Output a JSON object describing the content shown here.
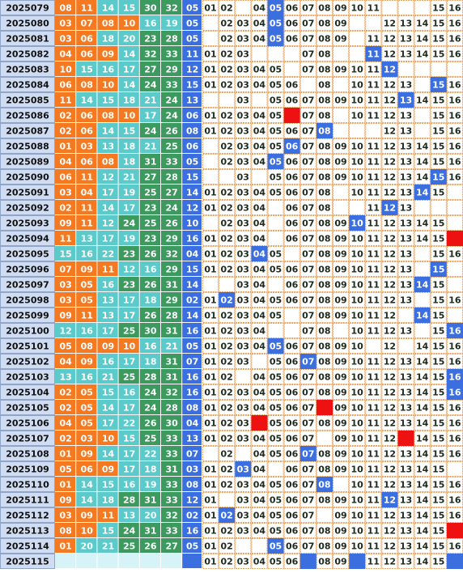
{
  "colors": {
    "zone1": "#f47920",
    "zone2": "#5ccaca",
    "zone3": "#3d9a5f",
    "blue": "#3b6fe0",
    "red": "#ee1111",
    "empty": "#d6f3f7"
  },
  "rows": [
    {
      "issue": "2025079",
      "reds": [
        "08",
        "11",
        "14",
        "15",
        "30",
        "32"
      ],
      "blue": "05",
      "hit": [
        5
      ],
      "dist": [
        "01",
        "02",
        null,
        "04",
        "05",
        "06",
        "07",
        "08",
        "09",
        "10",
        "11",
        null,
        null,
        null,
        "15",
        "16"
      ]
    },
    {
      "issue": "2025080",
      "reds": [
        "03",
        "07",
        "08",
        "10",
        "16",
        "19"
      ],
      "blue": "05",
      "hit": [
        5
      ],
      "dist": [
        null,
        "02",
        "03",
        "04",
        "05",
        "06",
        "07",
        "08",
        "09",
        null,
        null,
        "12",
        "13",
        "14",
        "15",
        "16"
      ]
    },
    {
      "issue": "2025081",
      "reds": [
        "03",
        "06",
        "18",
        "20",
        "23",
        "28"
      ],
      "blue": "05",
      "hit": [
        5
      ],
      "dist": [
        null,
        "02",
        "03",
        "04",
        "05",
        "06",
        "07",
        "08",
        "09",
        null,
        "11",
        "12",
        "13",
        "14",
        "15",
        "16"
      ]
    },
    {
      "issue": "2025082",
      "reds": [
        "04",
        "06",
        "09",
        "14",
        "32",
        "33"
      ],
      "blue": "11",
      "hit": [
        11
      ],
      "dist": [
        "01",
        "02",
        "03",
        null,
        null,
        null,
        "07",
        "08",
        null,
        null,
        "11",
        "12",
        "13",
        "14",
        "15",
        "16"
      ]
    },
    {
      "issue": "2025083",
      "reds": [
        "10",
        "15",
        "16",
        "17",
        "27",
        "29"
      ],
      "blue": "12",
      "hit": [
        12
      ],
      "dist": [
        "01",
        "02",
        "03",
        "04",
        "05",
        null,
        "07",
        "08",
        "09",
        "10",
        "11",
        "12",
        null,
        null,
        null,
        null
      ]
    },
    {
      "issue": "2025084",
      "reds": [
        "06",
        "08",
        "10",
        "14",
        "24",
        "33"
      ],
      "blue": "15",
      "hit": [
        15
      ],
      "dist": [
        "01",
        "02",
        "03",
        "04",
        "05",
        "06",
        null,
        "08",
        null,
        "10",
        "11",
        "12",
        "13",
        null,
        "15",
        "16"
      ]
    },
    {
      "issue": "2025085",
      "reds": [
        "11",
        "14",
        "15",
        "18",
        "21",
        "24"
      ],
      "blue": "13",
      "hit": [
        13
      ],
      "dist": [
        null,
        null,
        "03",
        null,
        "05",
        "06",
        "07",
        "08",
        "09",
        "10",
        "11",
        "12",
        "13",
        "14",
        "15",
        "16"
      ]
    },
    {
      "issue": "2025086",
      "reds": [
        "02",
        "06",
        "08",
        "10",
        "17",
        "24"
      ],
      "blue": "06",
      "hit": [
        6
      ],
      "hit_color": "red",
      "dist": [
        "01",
        "02",
        "03",
        "04",
        "05",
        null,
        "07",
        "08",
        null,
        "10",
        "11",
        "12",
        "13",
        null,
        "15",
        "16"
      ]
    },
    {
      "issue": "2025087",
      "reds": [
        "02",
        "06",
        "14",
        "15",
        "24",
        "26"
      ],
      "blue": "08",
      "hit": [
        8
      ],
      "dist": [
        "01",
        "02",
        "03",
        "04",
        "05",
        "06",
        "07",
        "08",
        null,
        null,
        null,
        "12",
        "13",
        null,
        "15",
        "16"
      ]
    },
    {
      "issue": "2025088",
      "reds": [
        "01",
        "03",
        "13",
        "18",
        "21",
        "25"
      ],
      "blue": "06",
      "hit": [
        6
      ],
      "dist": [
        null,
        "02",
        "03",
        "04",
        "05",
        "06",
        "07",
        "08",
        "09",
        "10",
        "11",
        "12",
        "13",
        "14",
        "15",
        "16"
      ]
    },
    {
      "issue": "2025089",
      "reds": [
        "04",
        "06",
        "08",
        "18",
        "31",
        "33"
      ],
      "blue": "05",
      "hit": [
        5
      ],
      "dist": [
        null,
        "02",
        "03",
        "04",
        "05",
        "06",
        "07",
        "08",
        "09",
        "10",
        "11",
        "12",
        "13",
        "14",
        "15",
        "16"
      ]
    },
    {
      "issue": "2025090",
      "reds": [
        "06",
        "11",
        "12",
        "21",
        "27",
        "28"
      ],
      "blue": "15",
      "hit": [
        15
      ],
      "dist": [
        null,
        null,
        "03",
        null,
        "05",
        "06",
        "07",
        "08",
        "09",
        "10",
        "11",
        "12",
        "13",
        "14",
        "15",
        "16"
      ]
    },
    {
      "issue": "2025091",
      "reds": [
        "03",
        "04",
        "17",
        "19",
        "25",
        "27"
      ],
      "blue": "14",
      "hit": [
        14
      ],
      "dist": [
        "01",
        "02",
        "03",
        "04",
        "05",
        "06",
        "07",
        "08",
        null,
        "10",
        "11",
        "12",
        "13",
        "14",
        "15",
        null
      ]
    },
    {
      "issue": "2025092",
      "reds": [
        "02",
        "11",
        "14",
        "17",
        "23",
        "24"
      ],
      "blue": "12",
      "hit": [
        12
      ],
      "dist": [
        "01",
        "02",
        "03",
        "04",
        null,
        "06",
        "07",
        "08",
        null,
        null,
        "11",
        "12",
        "13",
        null,
        null,
        null
      ]
    },
    {
      "issue": "2025093",
      "reds": [
        "09",
        "11",
        "12",
        "24",
        "25",
        "26"
      ],
      "blue": "10",
      "hit": [
        10
      ],
      "dist": [
        null,
        "02",
        "03",
        "04",
        null,
        "06",
        "07",
        "08",
        "09",
        "10",
        "11",
        "12",
        "13",
        "14",
        "15",
        null
      ]
    },
    {
      "issue": "2025094",
      "reds": [
        "11",
        "13",
        "17",
        "19",
        "23",
        "29"
      ],
      "blue": "16",
      "hit": [
        16
      ],
      "hit_color": "red",
      "dist": [
        "01",
        "02",
        "03",
        "04",
        null,
        "06",
        "07",
        "08",
        "09",
        "10",
        "11",
        "12",
        "13",
        "14",
        "15",
        null
      ]
    },
    {
      "issue": "2025095",
      "reds": [
        "15",
        "16",
        "22",
        "23",
        "26",
        "32"
      ],
      "blue": "04",
      "hit": [
        4
      ],
      "dist": [
        "01",
        "02",
        "03",
        "04",
        "05",
        null,
        "07",
        "08",
        "09",
        "10",
        "11",
        "12",
        "13",
        null,
        "15",
        "16"
      ]
    },
    {
      "issue": "2025096",
      "reds": [
        "07",
        "09",
        "11",
        "12",
        "16",
        "29"
      ],
      "blue": "15",
      "hit": [
        15
      ],
      "dist": [
        "01",
        "02",
        "03",
        "04",
        "05",
        "06",
        "07",
        "08",
        "09",
        "10",
        "11",
        "12",
        "13",
        null,
        "15",
        null
      ]
    },
    {
      "issue": "2025097",
      "reds": [
        "03",
        "05",
        "16",
        "23",
        "26",
        "31"
      ],
      "blue": "14",
      "hit": [
        14
      ],
      "dist": [
        null,
        null,
        "03",
        "04",
        null,
        "06",
        "07",
        "08",
        "09",
        "10",
        "11",
        "12",
        "13",
        "14",
        "15",
        null
      ]
    },
    {
      "issue": "2025098",
      "reds": [
        "03",
        "05",
        "13",
        "17",
        "18",
        "29"
      ],
      "blue": "02",
      "hit": [
        2
      ],
      "dist": [
        "01",
        "02",
        "03",
        "04",
        "05",
        "06",
        "07",
        "08",
        "09",
        "10",
        "11",
        "12",
        "13",
        null,
        "15",
        "16"
      ]
    },
    {
      "issue": "2025099",
      "reds": [
        "09",
        "11",
        "13",
        "17",
        "26",
        "28"
      ],
      "blue": "14",
      "hit": [
        14
      ],
      "dist": [
        "01",
        "02",
        "03",
        "04",
        "05",
        null,
        "07",
        "08",
        "09",
        "10",
        "11",
        "12",
        null,
        "14",
        "15",
        null
      ]
    },
    {
      "issue": "2025100",
      "reds": [
        "12",
        "16",
        "17",
        "25",
        "30",
        "31"
      ],
      "blue": "16",
      "hit": [
        16
      ],
      "dist": [
        "01",
        "02",
        "03",
        "04",
        null,
        null,
        "07",
        "08",
        null,
        "10",
        "11",
        "12",
        "13",
        null,
        "15",
        "16"
      ]
    },
    {
      "issue": "2025101",
      "reds": [
        "05",
        "08",
        "09",
        "10",
        "16",
        "21"
      ],
      "blue": "05",
      "hit": [
        5
      ],
      "dist": [
        "01",
        "02",
        "03",
        "04",
        "05",
        "06",
        "07",
        "08",
        "09",
        "10",
        null,
        "12",
        null,
        "14",
        "15",
        "16"
      ]
    },
    {
      "issue": "2025102",
      "reds": [
        "04",
        "09",
        "16",
        "17",
        "18",
        "31"
      ],
      "blue": "07",
      "hit": [
        7
      ],
      "dist": [
        "01",
        "02",
        "03",
        null,
        "05",
        "06",
        "07",
        "08",
        "09",
        "10",
        "11",
        "12",
        "13",
        "14",
        "15",
        "16"
      ]
    },
    {
      "issue": "2025103",
      "reds": [
        "13",
        "16",
        "21",
        "25",
        "28",
        "31"
      ],
      "blue": "16",
      "hit": [
        16
      ],
      "dist": [
        "01",
        "02",
        null,
        "04",
        "05",
        "06",
        "07",
        "08",
        "09",
        "10",
        "11",
        "12",
        "13",
        "14",
        "15",
        "16"
      ]
    },
    {
      "issue": "2025104",
      "reds": [
        "02",
        "05",
        "15",
        "16",
        "24",
        "32"
      ],
      "blue": "16",
      "hit": [
        16
      ],
      "dist": [
        "01",
        "02",
        "03",
        "04",
        "05",
        "06",
        "07",
        "08",
        "09",
        "10",
        "11",
        "12",
        "13",
        "14",
        "15",
        "16"
      ]
    },
    {
      "issue": "2025105",
      "reds": [
        "02",
        "05",
        "14",
        "17",
        "24",
        "28"
      ],
      "blue": "08",
      "hit": [
        8
      ],
      "hit_color": "red",
      "dist": [
        "01",
        "02",
        "03",
        "04",
        "05",
        "06",
        "07",
        null,
        "09",
        "10",
        "11",
        "12",
        "13",
        "14",
        "15",
        "16"
      ]
    },
    {
      "issue": "2025106",
      "reds": [
        "04",
        "05",
        "17",
        "22",
        "26",
        "30"
      ],
      "blue": "04",
      "hit": [
        4
      ],
      "hit_color": "red",
      "dist": [
        "01",
        "02",
        "03",
        null,
        "05",
        "06",
        "07",
        "08",
        "09",
        "10",
        "11",
        "12",
        "13",
        "14",
        "15",
        "16"
      ]
    },
    {
      "issue": "2025107",
      "reds": [
        "02",
        "03",
        "10",
        "15",
        "25",
        "33"
      ],
      "blue": "13",
      "hit": [
        13
      ],
      "hit_color": "red",
      "dist": [
        "01",
        "02",
        "03",
        "04",
        "05",
        "06",
        "07",
        null,
        "09",
        "10",
        "11",
        "12",
        null,
        "14",
        "15",
        "16"
      ]
    },
    {
      "issue": "2025108",
      "reds": [
        "01",
        "09",
        "14",
        "17",
        "22",
        "33"
      ],
      "blue": "07",
      "hit": [
        7
      ],
      "dist": [
        null,
        "02",
        null,
        "04",
        "05",
        "06",
        "07",
        "08",
        "09",
        "10",
        "11",
        "12",
        "13",
        "14",
        "15",
        "16"
      ]
    },
    {
      "issue": "2025109",
      "reds": [
        "05",
        "06",
        "09",
        "17",
        "18",
        "31"
      ],
      "blue": "03",
      "hit": [
        3
      ],
      "dist": [
        "01",
        "02",
        "03",
        "04",
        null,
        "06",
        "07",
        "08",
        "09",
        "10",
        "11",
        "12",
        "13",
        "14",
        "15",
        null
      ]
    },
    {
      "issue": "2025110",
      "reds": [
        "01",
        "14",
        "15",
        "16",
        "19",
        "33"
      ],
      "blue": "08",
      "hit": [
        8
      ],
      "dist": [
        "01",
        "02",
        "03",
        "04",
        "05",
        "06",
        "07",
        "08",
        null,
        "10",
        "11",
        "12",
        "13",
        "14",
        "15",
        "16"
      ]
    },
    {
      "issue": "2025111",
      "reds": [
        "09",
        "14",
        "18",
        "28",
        "31",
        "33"
      ],
      "blue": "12",
      "hit": [
        12
      ],
      "dist": [
        "01",
        null,
        "03",
        "04",
        "05",
        "06",
        "07",
        "08",
        "09",
        "10",
        "11",
        "12",
        "13",
        "14",
        "15",
        "16"
      ]
    },
    {
      "issue": "2025112",
      "reds": [
        "03",
        "09",
        "11",
        "13",
        "20",
        "32"
      ],
      "blue": "02",
      "hit": [
        2
      ],
      "dist": [
        "01",
        "02",
        "03",
        "04",
        "05",
        "06",
        "07",
        null,
        "09",
        "10",
        "11",
        "12",
        "13",
        "14",
        "15",
        "16"
      ]
    },
    {
      "issue": "2025113",
      "reds": [
        "08",
        "10",
        "15",
        "24",
        "31",
        "33"
      ],
      "blue": "16",
      "hit": [
        16
      ],
      "hit_color": "red",
      "dist": [
        "01",
        "02",
        "03",
        "04",
        "05",
        "06",
        "07",
        "08",
        "09",
        "10",
        "11",
        "12",
        "13",
        "14",
        "15",
        null
      ]
    },
    {
      "issue": "2025114",
      "reds": [
        "01",
        "20",
        "21",
        "25",
        "26",
        "27"
      ],
      "blue": "05",
      "hit": [
        5
      ],
      "dist": [
        "01",
        "02",
        null,
        null,
        "05",
        "06",
        "07",
        "08",
        "09",
        "10",
        "11",
        "12",
        "13",
        "14",
        "15",
        "16"
      ]
    },
    {
      "issue": "2025115",
      "reds": [],
      "blue": null,
      "hit": [
        7,
        10,
        16
      ],
      "dist": [
        "01",
        "02",
        "03",
        "04",
        "05",
        "06",
        null,
        "08",
        "09",
        null,
        "11",
        "12",
        "13",
        "14",
        "15",
        null
      ]
    }
  ]
}
